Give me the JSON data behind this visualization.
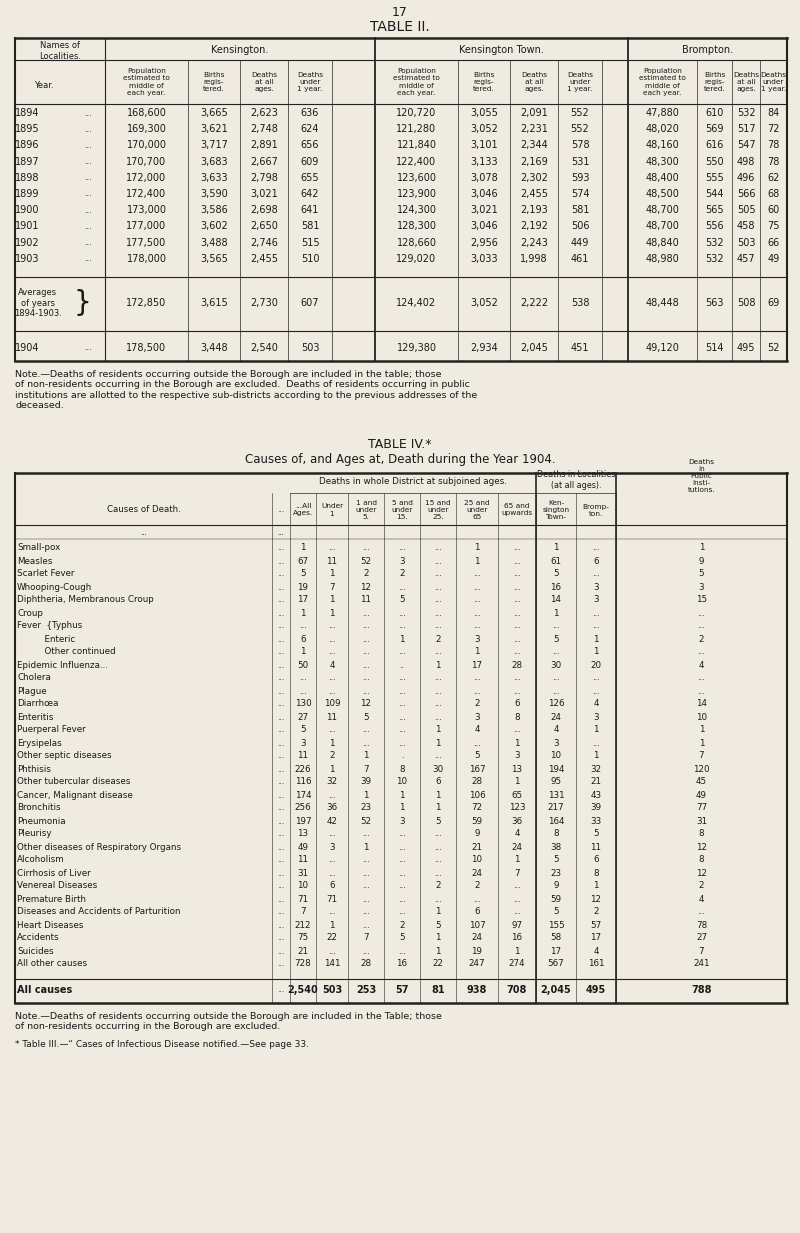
{
  "bg_color": "#f0ebe0",
  "page_num": "17",
  "table2_title": "TABLE II.",
  "table2_kensington": "Kensington.",
  "table2_kensington_town": "Kensington Town.",
  "table2_brompton": "Brompton.",
  "table2_col_headers": [
    "Population\nestimated to\nmiddle of\neach year.",
    "Births\nregis-\ntered.",
    "Deaths\nat all\nages.",
    "Deaths\nunder\n1 year."
  ],
  "table2_data": [
    [
      "1894",
      "168,600",
      "3,665",
      "2,623",
      "636",
      "120,720",
      "3,055",
      "2,091",
      "552",
      "47,880",
      "610",
      "532",
      "84"
    ],
    [
      "1895",
      "169,300",
      "3,621",
      "2,748",
      "624",
      "121,280",
      "3,052",
      "2,231",
      "552",
      "48,020",
      "569",
      "517",
      "72"
    ],
    [
      "1896",
      "170,000",
      "3,717",
      "2,891",
      "656",
      "121,840",
      "3,101",
      "2,344",
      "578",
      "48,160",
      "616",
      "547",
      "78"
    ],
    [
      "1897",
      "170,700",
      "3,683",
      "2,667",
      "609",
      "122,400",
      "3,133",
      "2,169",
      "531",
      "48,300",
      "550",
      "498",
      "78"
    ],
    [
      "1898",
      "172,000",
      "3,633",
      "2,798",
      "655",
      "123,600",
      "3,078",
      "2,302",
      "593",
      "48,400",
      "555",
      "496",
      "62"
    ],
    [
      "1899",
      "172,400",
      "3,590",
      "3,021",
      "642",
      "123,900",
      "3,046",
      "2,455",
      "574",
      "48,500",
      "544",
      "566",
      "68"
    ],
    [
      "1900",
      "173,000",
      "3,586",
      "2,698",
      "641",
      "124,300",
      "3,021",
      "2,193",
      "581",
      "48,700",
      "565",
      "505",
      "60"
    ],
    [
      "1901",
      "177,000",
      "3,602",
      "2,650",
      "581",
      "128,300",
      "3,046",
      "2,192",
      "506",
      "48,700",
      "556",
      "458",
      "75"
    ],
    [
      "1902",
      "177,500",
      "3,488",
      "2,746",
      "515",
      "128,660",
      "2,956",
      "2,243",
      "449",
      "48,840",
      "532",
      "503",
      "66"
    ],
    [
      "1903",
      "178,000",
      "3,565",
      "2,455",
      "510",
      "129,020",
      "3,033",
      "1,998",
      "461",
      "48,980",
      "532",
      "457",
      "49"
    ]
  ],
  "table2_avg": [
    "Averages\nof years\n1894-1903.",
    "172,850",
    "3,615",
    "2,730",
    "607",
    "124,402",
    "3,052",
    "2,222",
    "538",
    "48,448",
    "563",
    "508",
    "69"
  ],
  "table2_1904": [
    "1904",
    "178,500",
    "3,448",
    "2,540",
    "503",
    "129,380",
    "2,934",
    "2,045",
    "451",
    "49,120",
    "514",
    "495",
    "52"
  ],
  "table2_note": "Note.—Deaths of residents occurring outside the Borough are included in the table; those\nof non-residents occurring in the Borough are excluded.  Deaths of residents occurring in public\ninstitutions are allotted to the respective sub-districts according to the previous addresses of the\ndeceased.",
  "table4_title": "TABLE IV.*",
  "table4_subtitle": "Causes of, and Ages at, Death during the Year 1904.",
  "table4_causes": [
    [
      "Small-pox",
      "1",
      "...",
      "...",
      "...",
      "...",
      "1",
      "...",
      "1",
      "...",
      "1"
    ],
    [
      "Measles",
      "67",
      "11",
      "52",
      "3",
      "...",
      "1",
      "...",
      "61",
      "6",
      "9"
    ],
    [
      "Scarlet Fever",
      "5",
      "1",
      "2",
      "2",
      "...",
      "...",
      "...",
      "5",
      "...",
      "5"
    ],
    [
      "Whooping-Cough",
      "19",
      "7",
      "12",
      "...",
      "...",
      "...",
      "...",
      "16",
      "3",
      "3"
    ],
    [
      "Diphtheria, Membranous Croup",
      "17",
      "1",
      "11",
      "5",
      "...",
      "...",
      "...",
      "14",
      "3",
      "15"
    ],
    [
      "Croup",
      "1",
      "1",
      "...",
      "...",
      "...",
      "...",
      "...",
      "1",
      "...",
      "..."
    ],
    [
      "Fever  {Typhus",
      "...",
      "...",
      "...",
      "...",
      "...",
      "...",
      "...",
      "...",
      "...",
      "..."
    ],
    [
      "          Enteric",
      "6",
      "...",
      "...",
      "1",
      "2",
      "3",
      "...",
      "5",
      "1",
      "2"
    ],
    [
      "          Other continued",
      "1",
      "...",
      "...",
      "...",
      "...",
      "1",
      "...",
      "...",
      "1",
      "..."
    ],
    [
      "Epidemic Influenza...",
      "50",
      "4",
      "...",
      "..",
      "1",
      "17",
      "28",
      "30",
      "20",
      "4"
    ],
    [
      "Cholera",
      "...",
      "...",
      "...",
      "...",
      "...",
      "...",
      "...",
      "...",
      "...",
      "..."
    ],
    [
      "Plague",
      "...",
      "...",
      "...",
      "...",
      "...",
      "...",
      "...",
      "...",
      "...",
      "..."
    ],
    [
      "Diarrhœa",
      "130",
      "109",
      "12",
      "...",
      "...",
      "2",
      "6",
      "126",
      "4",
      "14"
    ],
    [
      "Enteritis",
      "27",
      "11",
      "5",
      "...",
      "...",
      "3",
      "8",
      "24",
      "3",
      "10"
    ],
    [
      "Puerperal Fever",
      "5",
      "...",
      "...",
      "...",
      "1",
      "4",
      "...",
      "4",
      "1",
      "1"
    ],
    [
      "Erysipelas",
      "3",
      "1",
      "...",
      "...",
      "1",
      "...",
      "1",
      "3",
      "...",
      "1"
    ],
    [
      "Other septic diseases",
      "11",
      "2",
      "1",
      ".",
      "...",
      "5",
      "3",
      "10",
      "1",
      "7"
    ],
    [
      "Phthisis",
      "226",
      "1",
      "7",
      "8",
      "30",
      "167",
      "13",
      "194",
      "32",
      "120"
    ],
    [
      "Other tubercular diseases",
      "116",
      "32",
      "39",
      "10",
      "6",
      "28",
      "1",
      "95",
      "21",
      "45"
    ],
    [
      "Cancer, Malignant disease",
      "174",
      "...",
      "1",
      "1",
      "1",
      "106",
      "65",
      "131",
      "43",
      "49"
    ],
    [
      "Bronchitis",
      "256",
      "36",
      "23",
      "1",
      "1",
      "72",
      "123",
      "217",
      "39",
      "77"
    ],
    [
      "Pneumonia",
      "197",
      "42",
      "52",
      "3",
      "5",
      "59",
      "36",
      "164",
      "33",
      "31"
    ],
    [
      "Pleurisy",
      "13",
      "...",
      "...",
      "...",
      "...",
      "9",
      "4",
      "8",
      "5",
      "8"
    ],
    [
      "Other diseases of Respiratory Organs",
      "49",
      "3",
      "1",
      "...",
      "...",
      "21",
      "24",
      "38",
      "11",
      "12"
    ],
    [
      "Alcoholism",
      "11",
      "...",
      "...",
      "...",
      "...",
      "10",
      "1",
      "5",
      "6",
      "8"
    ],
    [
      "Cirrhosis of Liver",
      "31",
      "...",
      "...",
      "...",
      "...",
      "24",
      "7",
      "23",
      "8",
      "12"
    ],
    [
      "Venereal Diseases",
      "10",
      "6",
      "...",
      "...",
      "2",
      "2",
      "...",
      "9",
      "1",
      "2"
    ],
    [
      "Premature Birth",
      "71",
      "71",
      "...",
      "...",
      "...",
      "...",
      "...",
      "59",
      "12",
      "4"
    ],
    [
      "Diseases and Accidents of Parturition",
      "7",
      "...",
      "...",
      "...",
      "1",
      "6",
      "...",
      "5",
      "2",
      "..."
    ],
    [
      "Heart Diseases",
      "212",
      "1",
      "...",
      "2",
      "5",
      "107",
      "97",
      "155",
      "57",
      "78"
    ],
    [
      "Accidents",
      "75",
      "22",
      "7",
      "5",
      "1",
      "24",
      "16",
      "58",
      "17",
      "27"
    ],
    [
      "Suicides",
      "21",
      "...",
      "...",
      "...",
      "1",
      "19",
      "1",
      "17",
      "4",
      "7"
    ],
    [
      "All other causes",
      "728",
      "141",
      "28",
      "16",
      "22",
      "247",
      "274",
      "567",
      "161",
      "241"
    ]
  ],
  "table4_total": [
    "All causes",
    "2,540",
    "503",
    "253",
    "57",
    "81",
    "938",
    "708",
    "2,045",
    "495",
    "788"
  ],
  "table4_note": "Note.—Deaths of residents occurring outside the Borough are included in the Table; those\nof non-residents occurring in the Borough are excluded.",
  "table4_footnote": "* Table III.—“ Cases of Infectious Disease notified.—See page 33."
}
